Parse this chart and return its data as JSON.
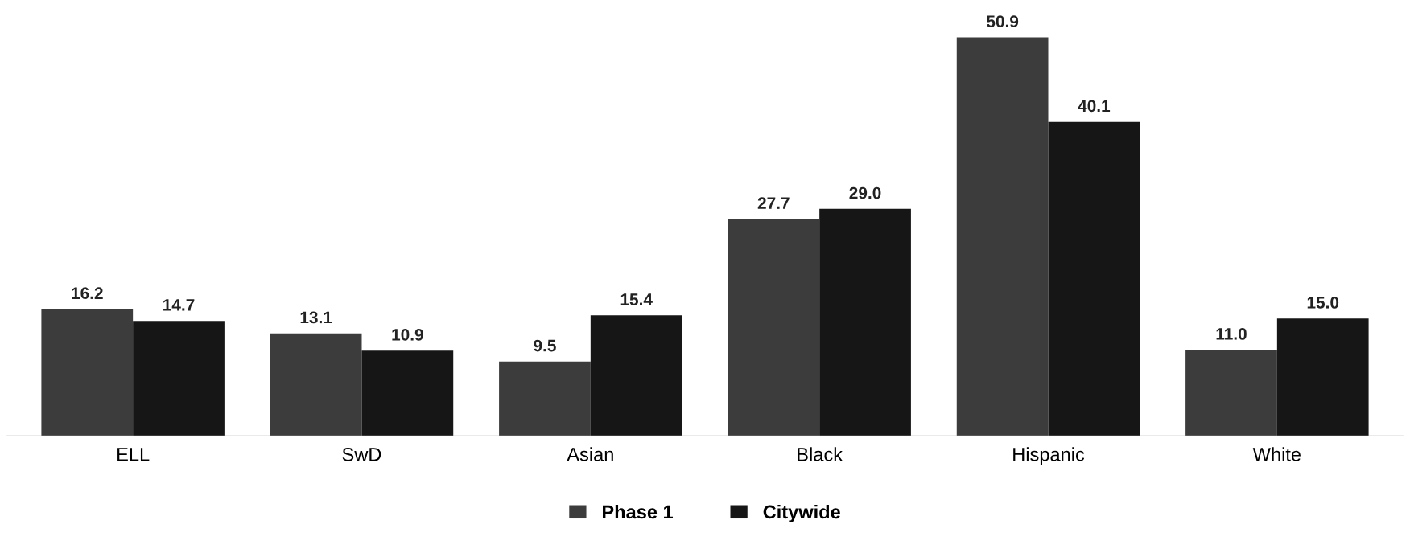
{
  "chart_data": {
    "type": "bar",
    "categories": [
      "ELL",
      "SwD",
      "Asian",
      "Black",
      "Hispanic",
      "White"
    ],
    "series": [
      {
        "name": "Phase 1",
        "color": "#3c3c3c",
        "values": [
          16.2,
          13.1,
          9.5,
          27.7,
          50.9,
          11.0
        ],
        "value_labels": [
          "16.2",
          "13.1",
          "9.5",
          "27.7",
          "50.9",
          "11.0"
        ]
      },
      {
        "name": "Citywide",
        "color": "#161616",
        "values": [
          14.7,
          10.9,
          15.4,
          29.0,
          40.1,
          15.0
        ],
        "value_labels": [
          "14.7",
          "10.9",
          "15.4",
          "29.0",
          "40.1",
          "15.0"
        ]
      }
    ],
    "legend": "bottom",
    "grid": false
  }
}
